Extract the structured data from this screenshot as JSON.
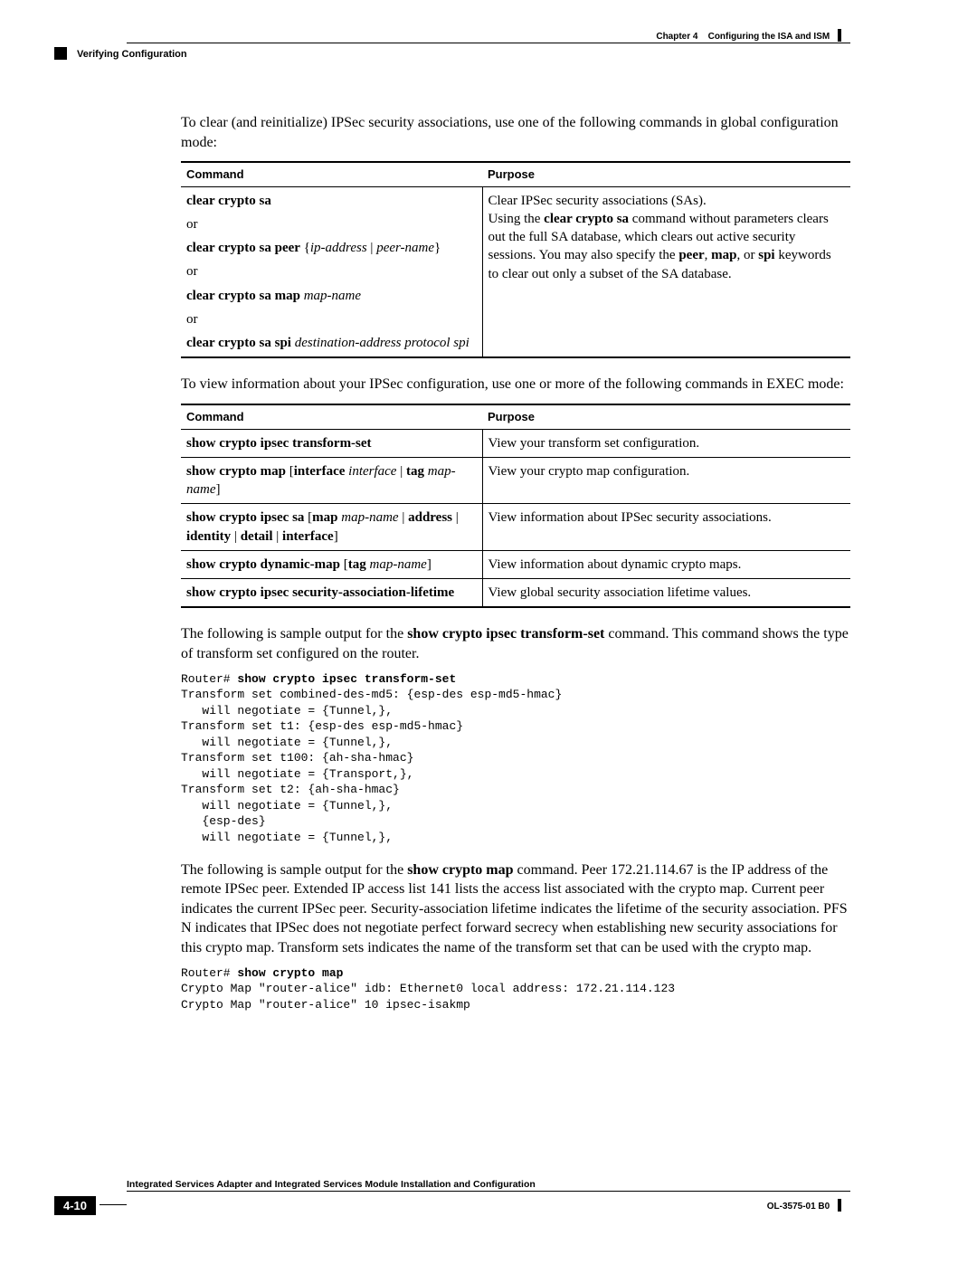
{
  "header": {
    "chapter": "Chapter 4",
    "chapter_title": "Configuring the ISA and ISM",
    "section": "Verifying Configuration"
  },
  "intro1": "To clear (and reinitialize) IPSec security associations, use one of the following commands in global configuration mode:",
  "table1": {
    "headers": {
      "command": "Command",
      "purpose": "Purpose"
    },
    "cmd": {
      "l1": "clear crypto sa",
      "or": "or",
      "l2a": "clear crypto sa peer",
      "l2b": "{",
      "l2c": "ip-address",
      "l2d": " | ",
      "l2e": "peer-name",
      "l2f": "}",
      "l3a": "clear crypto sa map",
      "l3b": "map-name",
      "l4a": "clear crypto sa spi",
      "l4b": "destination-address protocol spi"
    },
    "purpose": {
      "p1": "Clear IPSec security associations (SAs).",
      "p2a": "Using the ",
      "p2b": "clear crypto sa",
      "p2c": " command without parameters clears out the full SA database, which clears out active security sessions. You may also specify the ",
      "p2d": "peer",
      "p2e": ", ",
      "p2f": "map",
      "p2g": ", or ",
      "p2h": "spi",
      "p2i": " keywords to clear out only a subset of the SA database."
    }
  },
  "intro2": "To view information about your IPSec configuration, use one or more of the following commands in EXEC mode:",
  "table2": {
    "headers": {
      "command": "Command",
      "purpose": "Purpose"
    },
    "rows": [
      {
        "cmd_bold": "show crypto ipsec transform-set",
        "purpose": "View your transform set configuration."
      },
      {
        "cmd_bold": "show crypto map",
        "cmd_mid": " [",
        "cmd_bold2": "interface",
        "cmd_it1": " interface",
        "cmd_mid2": " | ",
        "cmd_bold3": "tag",
        "cmd_it2": " map-name",
        "cmd_mid3": "]",
        "purpose": "View your crypto map configuration."
      },
      {
        "cmd_bold": "show crypto ipsec sa",
        "cmd_mid": " [",
        "cmd_bold2": "map",
        "cmd_it1": " map-name",
        "cmd_mid2": " | ",
        "cmd_bold3": "address",
        "cmd_mid3": " | ",
        "cmd_bold4": "identity",
        "cmd_mid4": " | ",
        "cmd_bold5": "detail",
        "cmd_mid5": " | ",
        "cmd_bold6": "interface",
        "cmd_mid6": "]",
        "purpose": "View information about IPSec security associations."
      },
      {
        "cmd_bold": "show crypto dynamic-map",
        "cmd_mid": " [",
        "cmd_bold2": "tag",
        "cmd_it1": " map-name",
        "cmd_mid2": "]",
        "purpose": "View information about dynamic crypto maps."
      },
      {
        "cmd_bold": "show crypto ipsec security-association-lifetime",
        "purpose": "View global security association lifetime values."
      }
    ]
  },
  "para3a": "The following is sample output for the ",
  "para3b": "show crypto ipsec transform-set",
  "para3c": " command. This command shows the type of transform set configured on the router.",
  "code1prompt": "Router# ",
  "code1cmd": "show crypto ipsec transform-set",
  "code1body": "Transform set combined-des-md5: {esp-des esp-md5-hmac}\n   will negotiate = {Tunnel,},\nTransform set t1: {esp-des esp-md5-hmac}\n   will negotiate = {Tunnel,},\nTransform set t100: {ah-sha-hmac}\n   will negotiate = {Transport,},\nTransform set t2: {ah-sha-hmac}\n   will negotiate = {Tunnel,},\n   {esp-des}\n   will negotiate = {Tunnel,},",
  "para4a": "The following is sample output for the ",
  "para4b": "show crypto map",
  "para4c": " command. Peer 172.21.114.67 is the IP address of the remote IPSec peer. Extended IP access list 141 lists the access list associated with the crypto map. Current peer indicates the current IPSec peer. Security-association lifetime indicates the lifetime of the security association. PFS N indicates that IPSec does not negotiate perfect forward secrecy when establishing new security associations for this crypto map. Transform sets indicates the name of the transform set that can be used with the crypto map.",
  "code2prompt": "Router# ",
  "code2cmd": "show crypto map",
  "code2body": "Crypto Map \"router-alice\" idb: Ethernet0 local address: 172.21.114.123\nCrypto Map \"router-alice\" 10 ipsec-isakmp",
  "footer": {
    "title": "Integrated Services Adapter and Integrated Services Module Installation and Configuration",
    "page": "4-10",
    "docid": "OL-3575-01 B0"
  }
}
